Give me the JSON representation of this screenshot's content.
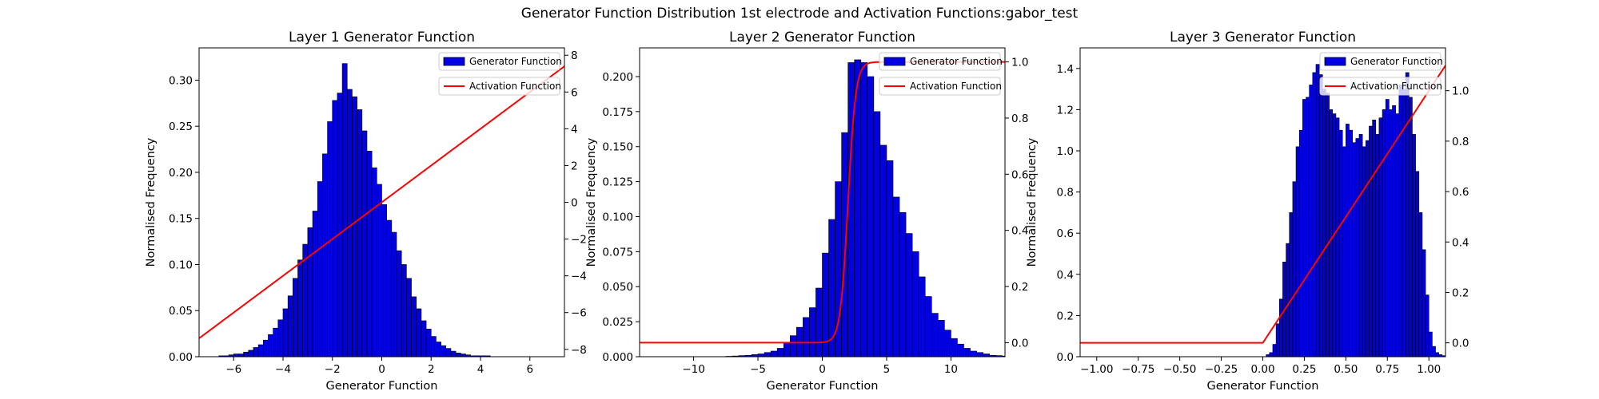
{
  "figure": {
    "title": "Generator Function Distribution 1st electrode and Activation Functions:gabor_test"
  },
  "colors": {
    "bar_fill": "#0000e0",
    "bar_edge": "#000000",
    "activation_line": "#ff0000"
  },
  "chart_data": [
    {
      "type": "bar",
      "title": "Layer 1 Generator Function",
      "xlabel": "Generator Function",
      "ylabel": "Normalised Frequency",
      "xlim": [
        -7.4,
        7.4
      ],
      "ylim": [
        0,
        0.335
      ],
      "xticks": [
        -6,
        -4,
        -2,
        0,
        2,
        4,
        6
      ],
      "yticks": [
        0.0,
        0.05,
        0.1,
        0.15,
        0.2,
        0.25,
        0.3
      ],
      "y2lim": [
        -8.4,
        8.4
      ],
      "y2ticks": [
        -8,
        -6,
        -4,
        -2,
        0,
        2,
        4,
        6,
        8
      ],
      "histogram": {
        "x_start": -6.6,
        "bin_width": 0.2,
        "values": [
          0.001,
          0.001,
          0.002,
          0.003,
          0.003,
          0.005,
          0.007,
          0.01,
          0.013,
          0.018,
          0.024,
          0.031,
          0.04,
          0.052,
          0.066,
          0.085,
          0.105,
          0.122,
          0.14,
          0.158,
          0.19,
          0.22,
          0.255,
          0.278,
          0.286,
          0.318,
          0.29,
          0.282,
          0.268,
          0.245,
          0.223,
          0.205,
          0.187,
          0.165,
          0.148,
          0.135,
          0.115,
          0.1,
          0.085,
          0.065,
          0.052,
          0.039,
          0.03,
          0.022,
          0.016,
          0.012,
          0.009,
          0.006,
          0.004,
          0.003,
          0.002,
          0.001,
          0.001,
          0.001,
          0.001
        ]
      },
      "activation": {
        "type": "linear",
        "x": [
          -7.4,
          7.4
        ],
        "y": [
          -7.4,
          7.4
        ]
      },
      "legend": {
        "placement": "top-right",
        "entries": [
          "Generator Function",
          "Activation Function"
        ]
      }
    },
    {
      "type": "bar",
      "title": "Layer 2 Generator Function",
      "xlabel": "Generator Function",
      "ylabel": "Normalised Frequency",
      "xlim": [
        -14.2,
        14.2
      ],
      "ylim": [
        0,
        0.2205
      ],
      "xticks": [
        -10,
        -5,
        0,
        5,
        10
      ],
      "yticks": [
        0.0,
        0.025,
        0.05,
        0.075,
        0.1,
        0.125,
        0.15,
        0.175,
        0.2
      ],
      "y2lim": [
        -0.05,
        1.05
      ],
      "y2ticks": [
        0.0,
        0.2,
        0.4,
        0.6,
        0.8,
        1.0
      ],
      "histogram": {
        "x_start": -7.5,
        "bin_width": 0.5,
        "values": [
          0.0003,
          0.0005,
          0.0008,
          0.001,
          0.0015,
          0.002,
          0.003,
          0.004,
          0.006,
          0.01,
          0.015,
          0.021,
          0.028,
          0.035,
          0.049,
          0.074,
          0.098,
          0.125,
          0.16,
          0.21,
          0.212,
          0.21,
          0.2,
          0.175,
          0.151,
          0.14,
          0.114,
          0.103,
          0.088,
          0.075,
          0.057,
          0.043,
          0.031,
          0.026,
          0.019,
          0.013,
          0.009,
          0.006,
          0.004,
          0.003,
          0.002,
          0.001,
          0.0008,
          0.0005
        ]
      },
      "activation": {
        "type": "sigmoid",
        "center": 2.0,
        "scale": 0.3
      },
      "legend": {
        "placement": "top-right",
        "entries": [
          "Generator Function",
          "Activation Function"
        ]
      }
    },
    {
      "type": "bar",
      "title": "Layer 3 Generator Function",
      "xlabel": "Generator Function",
      "ylabel": "Normalised Frequency",
      "xlim": [
        -1.1,
        1.1
      ],
      "ylim": [
        0,
        1.5
      ],
      "xticks": [
        -1.0,
        -0.75,
        -0.5,
        -0.25,
        0.0,
        0.25,
        0.5,
        0.75,
        1.0
      ],
      "yticks": [
        0.0,
        0.2,
        0.4,
        0.6,
        0.8,
        1.0,
        1.2,
        1.4
      ],
      "y2lim": [
        -0.055,
        1.17
      ],
      "y2ticks": [
        0.0,
        0.2,
        0.4,
        0.6,
        0.8,
        1.0
      ],
      "histogram": {
        "x_start": 0.02,
        "bin_width": 0.02,
        "values": [
          0.01,
          0.02,
          0.06,
          0.16,
          0.28,
          0.46,
          0.55,
          0.7,
          0.85,
          1.02,
          1.1,
          1.25,
          1.26,
          1.32,
          1.38,
          1.42,
          1.37,
          1.3,
          1.28,
          1.2,
          1.18,
          1.16,
          1.1,
          1.02,
          1.13,
          1.1,
          1.04,
          1.06,
          1.08,
          1.02,
          1.05,
          1.12,
          1.15,
          1.08,
          1.16,
          1.2,
          1.25,
          1.2,
          1.22,
          1.18,
          1.32,
          1.3,
          1.38,
          1.26,
          1.08,
          0.9,
          0.7,
          0.52,
          0.3,
          0.12,
          0.05,
          0.02,
          0.01,
          0.005
        ]
      },
      "activation": {
        "type": "relu",
        "x": [
          -1.1,
          0.0,
          1.1
        ],
        "y": [
          0.0,
          0.0,
          1.1
        ]
      },
      "legend": {
        "placement": "top-right",
        "entries": [
          "Generator Function",
          "Activation Function"
        ]
      }
    }
  ]
}
